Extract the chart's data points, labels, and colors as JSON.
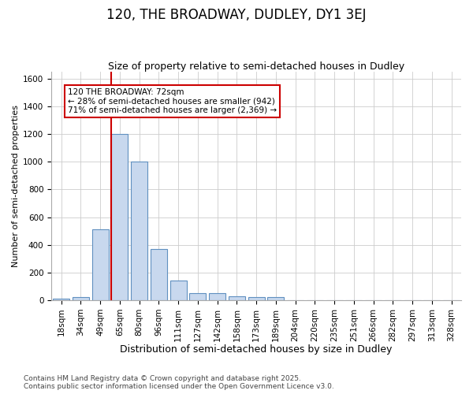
{
  "title": "120, THE BROADWAY, DUDLEY, DY1 3EJ",
  "subtitle": "Size of property relative to semi-detached houses in Dudley",
  "xlabel": "Distribution of semi-detached houses by size in Dudley",
  "ylabel": "Number of semi-detached properties",
  "categories": [
    "18sqm",
    "34sqm",
    "49sqm",
    "65sqm",
    "80sqm",
    "96sqm",
    "111sqm",
    "127sqm",
    "142sqm",
    "158sqm",
    "173sqm",
    "189sqm",
    "204sqm",
    "220sqm",
    "235sqm",
    "251sqm",
    "266sqm",
    "282sqm",
    "297sqm",
    "313sqm",
    "328sqm"
  ],
  "values": [
    10,
    25,
    510,
    1200,
    1000,
    370,
    145,
    50,
    50,
    30,
    25,
    25,
    0,
    0,
    0,
    0,
    0,
    0,
    0,
    0,
    0
  ],
  "bar_color": "#c8d8ee",
  "bar_edge_color": "#6090c0",
  "vline_color": "#cc0000",
  "vline_index": 3,
  "annotation_text": "120 THE BROADWAY: 72sqm\n← 28% of semi-detached houses are smaller (942)\n71% of semi-detached houses are larger (2,369) →",
  "annotation_box_facecolor": "#ffffff",
  "annotation_box_edgecolor": "#cc0000",
  "ylim": [
    0,
    1650
  ],
  "yticks": [
    0,
    200,
    400,
    600,
    800,
    1000,
    1200,
    1400,
    1600
  ],
  "grid_color": "#cccccc",
  "bg_color": "#ffffff",
  "plot_bg_color": "#ffffff",
  "footer_line1": "Contains HM Land Registry data © Crown copyright and database right 2025.",
  "footer_line2": "Contains public sector information licensed under the Open Government Licence v3.0.",
  "title_fontsize": 12,
  "subtitle_fontsize": 9,
  "xlabel_fontsize": 9,
  "ylabel_fontsize": 8,
  "tick_fontsize": 7.5,
  "footer_fontsize": 6.5
}
